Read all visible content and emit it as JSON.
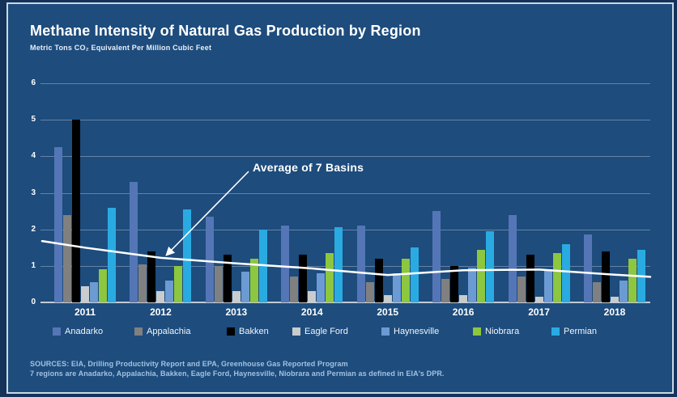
{
  "header": {
    "title": "Methane Intensity of Natural Gas Production by Region",
    "subtitle": "Metric Tons CO₂ Equivalent Per Million Cubic Feet"
  },
  "footnotes": {
    "line1": "SOURCES: EIA, Drilling Productivity Report and EPA, Greenhouse Gas Reported Program",
    "line2": "7 regions are Anadarko, Appalachia, Bakken, Eagle Ford, Haynesville, Niobrara and Permian as defined in EIA's DPR."
  },
  "colors": {
    "outer_background": "#15335A",
    "panel_background": "#1D4C7D",
    "panel_border": "#CBD8E6",
    "gridline": "#7E95B3",
    "axis_baseline": "#C2CBD5",
    "text": "#FFFFFF",
    "footnote_text": "#A3C2E2",
    "average_line": "#FFFFFF"
  },
  "chart_data": {
    "type": "bar",
    "title": "Methane Intensity of Natural Gas Production by Region",
    "ylabel": "Metric Tons CO₂ Equivalent Per Million Cubic Feet",
    "xlabel": "",
    "ylim": [
      0,
      6
    ],
    "yticks": [
      0,
      1,
      2,
      3,
      4,
      5,
      6
    ],
    "grid": true,
    "legend_position": "bottom",
    "categories": [
      "2011",
      "2012",
      "2013",
      "2014",
      "2015",
      "2016",
      "2017",
      "2018"
    ],
    "series": [
      {
        "name": "Anadarko",
        "color": "#5576B6",
        "values": [
          4.25,
          3.3,
          2.35,
          2.1,
          2.1,
          2.5,
          2.4,
          1.85
        ]
      },
      {
        "name": "Appalachia",
        "color": "#808080",
        "values": [
          2.4,
          1.05,
          1.0,
          0.7,
          0.55,
          0.65,
          0.7,
          0.55
        ]
      },
      {
        "name": "Bakken",
        "color": "#000000",
        "values": [
          5.0,
          1.4,
          1.3,
          1.3,
          1.2,
          1.0,
          1.3,
          1.4
        ]
      },
      {
        "name": "Eagle Ford",
        "color": "#C8CCCE",
        "values": [
          0.45,
          0.3,
          0.3,
          0.3,
          0.2,
          0.2,
          0.15,
          0.15
        ]
      },
      {
        "name": "Haynesville",
        "color": "#6B9BD2",
        "values": [
          0.55,
          0.6,
          0.85,
          0.8,
          0.8,
          0.95,
          0.9,
          0.6
        ]
      },
      {
        "name": "Niobrara",
        "color": "#8DC63F",
        "values": [
          0.9,
          1.0,
          1.2,
          1.35,
          1.2,
          1.45,
          1.35,
          1.2
        ]
      },
      {
        "name": "Permian",
        "color": "#29ABE2",
        "values": [
          2.6,
          2.55,
          2.0,
          2.05,
          1.5,
          1.95,
          1.6,
          1.45
        ]
      }
    ],
    "average_line": {
      "label": "Average of 7 Basins",
      "values": [
        1.5,
        1.22,
        1.07,
        0.93,
        0.75,
        0.88,
        0.9,
        0.76
      ],
      "edge_start_value": 1.68,
      "edge_end_value": 0.7,
      "color": "#FFFFFF"
    }
  }
}
